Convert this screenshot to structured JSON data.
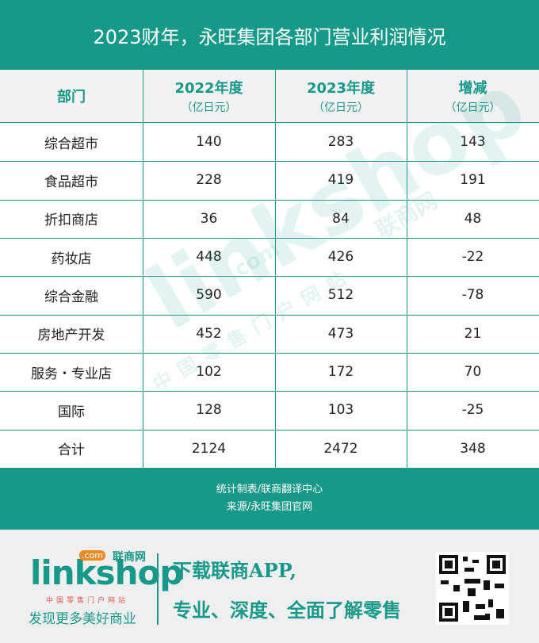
{
  "header": {
    "title": "2023财年，永旺集团各部门营业利润情况"
  },
  "table": {
    "columns": [
      {
        "label": "部门"
      },
      {
        "label": "2022年度",
        "unit": "（亿日元）"
      },
      {
        "label": "2023年度",
        "unit": "（亿日元）"
      },
      {
        "label": "增减",
        "unit": "（亿日元）"
      }
    ],
    "rows": [
      [
        "综合超市",
        140,
        283,
        143
      ],
      [
        "食品超市",
        228,
        419,
        191
      ],
      [
        "折扣商店",
        36,
        84,
        48
      ],
      [
        "药妆店",
        448,
        426,
        -22
      ],
      [
        "综合金融",
        590,
        512,
        -78
      ],
      [
        "房地产开发",
        452,
        473,
        21
      ],
      [
        "服务・专业店",
        102,
        172,
        70
      ],
      [
        "国际",
        128,
        103,
        -25
      ],
      [
        "合计",
        2124,
        2472,
        348
      ]
    ]
  },
  "footer": {
    "notes": [
      "统计制表/联商翻译中心",
      "来源/永旺集团官网"
    ]
  },
  "watermark": {
    "logo": "linkshop",
    "dotcom": ".com",
    "brand": "联商网",
    "slogan": "中国零售门户网站"
  },
  "banner": {
    "logo": "linkshop",
    "dotcom": ".com",
    "brand": "联商网",
    "slogan": "中国零售门户网站",
    "tagline": "发现更多美好商业",
    "promo": [
      "下载联商APP,",
      "专业、深度、全面了解零售"
    ]
  }
}
